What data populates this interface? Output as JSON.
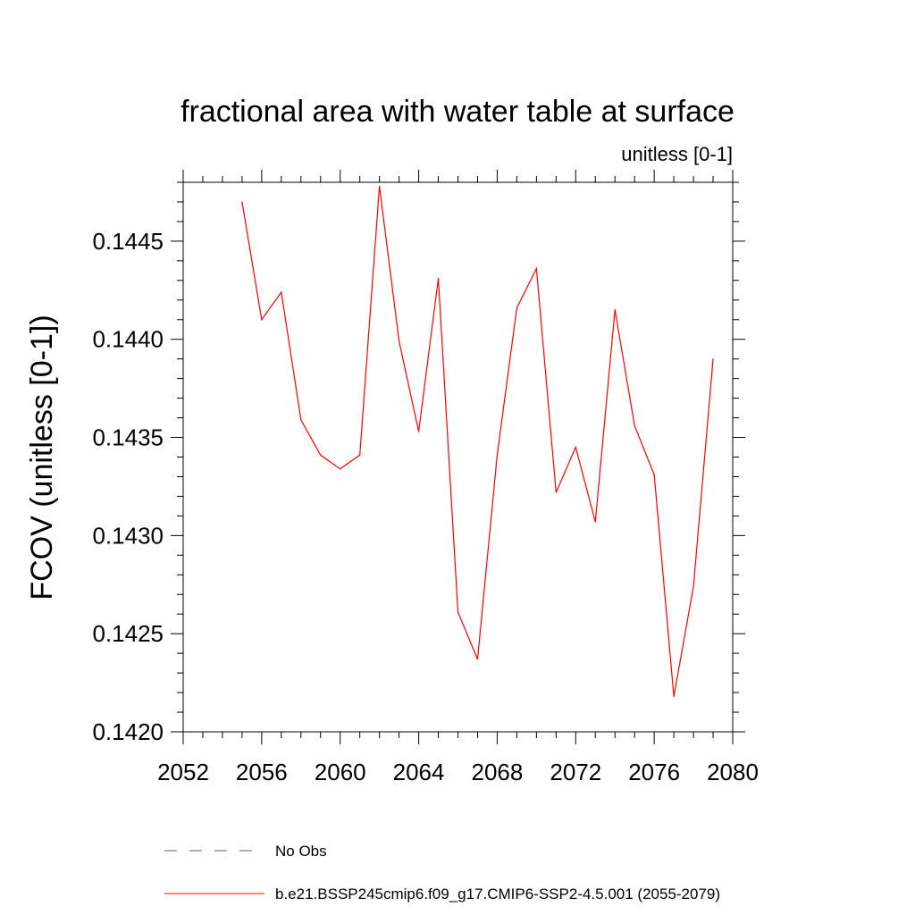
{
  "chart_data": {
    "type": "line",
    "title": "fractional area with water table at surface",
    "subtitle": "unitless [0-1]",
    "xlabel": "",
    "ylabel": "FCOV  (unitless [0-1])",
    "xlim": [
      2052,
      2080
    ],
    "ylim": [
      0.142,
      0.1448
    ],
    "x_ticks": [
      2052,
      2056,
      2060,
      2064,
      2068,
      2072,
      2076,
      2080
    ],
    "x_tick_labels": [
      "2052",
      "2056",
      "2060",
      "2064",
      "2068",
      "2072",
      "2076",
      "2080"
    ],
    "y_ticks": [
      0.142,
      0.1425,
      0.143,
      0.1435,
      0.144,
      0.1445
    ],
    "y_tick_labels": [
      "0.1420",
      "0.1425",
      "0.1430",
      "0.1435",
      "0.1440",
      "0.1445"
    ],
    "x_minor_step": 1,
    "y_minor_step": 0.0001,
    "grid": false,
    "series": [
      {
        "name": "b.e21.BSSP245cmip6.f09_g17.CMIP6-SSP2-4.5.001 (2055-2079)",
        "color": "#ff0000",
        "x": [
          2055,
          2056,
          2057,
          2058,
          2059,
          2060,
          2061,
          2062,
          2063,
          2064,
          2065,
          2066,
          2067,
          2068,
          2069,
          2070,
          2071,
          2072,
          2073,
          2074,
          2075,
          2076,
          2077,
          2078,
          2079
        ],
        "values": [
          0.1447,
          0.1441,
          0.14424,
          0.14359,
          0.14341,
          0.14334,
          0.14341,
          0.14478,
          0.14399,
          0.14353,
          0.14431,
          0.14261,
          0.14237,
          0.14341,
          0.14416,
          0.14436,
          0.14322,
          0.14345,
          0.14307,
          0.14415,
          0.14356,
          0.14331,
          0.14218,
          0.14274,
          0.1439
        ]
      }
    ],
    "legend": {
      "placement": "bottom",
      "entries": [
        {
          "label": "No Obs",
          "color": "#5a5aa0",
          "style": "dashed"
        },
        {
          "label": "b.e21.BSSP245cmip6.f09_g17.CMIP6-SSP2-4.5.001 (2055-2079)",
          "color": "#ff0000",
          "style": "solid"
        }
      ]
    }
  }
}
